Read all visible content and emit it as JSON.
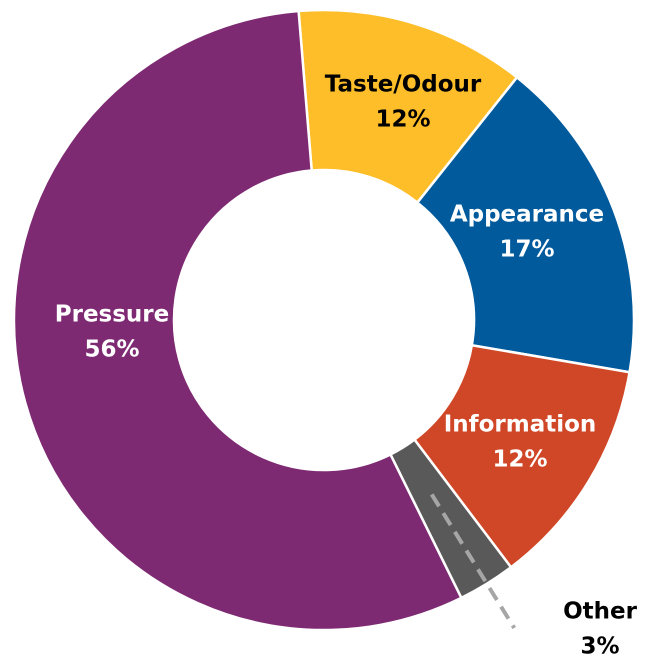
{
  "chart_data": {
    "type": "donut",
    "categories": [
      "Taste/Odour",
      "Appearance",
      "Information",
      "Other",
      "Pressure"
    ],
    "values": [
      12,
      17,
      12,
      3,
      56
    ],
    "value_labels": [
      "12%",
      "17%",
      "12%",
      "3%",
      "56%"
    ],
    "colors": [
      "#FDBE2A",
      "#005A9C",
      "#D04727",
      "#595959",
      "#7E2A73"
    ]
  }
}
